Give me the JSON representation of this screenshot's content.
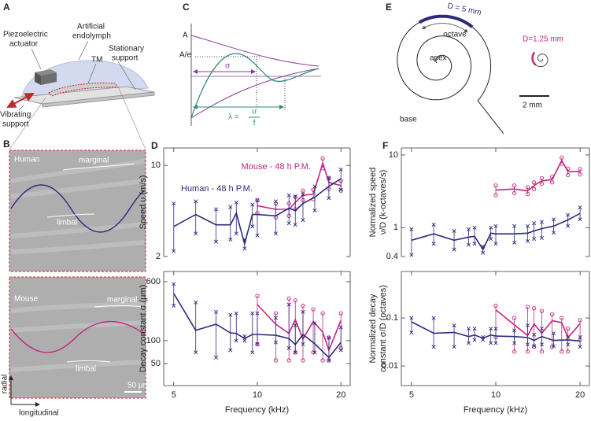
{
  "panel_labels": [
    "A",
    "B",
    "C",
    "D",
    "E",
    "F"
  ],
  "panel_a": {
    "actuator": [
      "Piezoelectric",
      "actuator"
    ],
    "endolymph": [
      "Artificial",
      "endolymph"
    ],
    "tm": "TM",
    "stationary": [
      "Stationary",
      "support"
    ],
    "vibrating": [
      "Vibrating",
      "support"
    ]
  },
  "panel_b": {
    "top": {
      "species": "Human",
      "marginal": "marginal",
      "limbal": "limbal"
    },
    "bottom": {
      "species": "Mouse",
      "marginal": "marginal",
      "limbal": "limbal"
    },
    "radial": "radial",
    "longitudinal": "longitudinal",
    "scale": "50 μm"
  },
  "panel_c": {
    "amp": "A",
    "amp_e": "A/e",
    "sigma": "σ",
    "lambda": "λ =",
    "lambda_num": "υ",
    "lambda_den": "f"
  },
  "panel_e": {
    "d_large": "D = 5 mm",
    "octave": "octave",
    "apex": "apex",
    "base": "base",
    "d_small": "D=1.25 mm",
    "scale": "2 mm"
  },
  "chart_data": [
    {
      "type": "line",
      "ylabel": "Speed υ (m/s)",
      "log_x": true,
      "log_y": true,
      "xlim": [
        4.6,
        21.6
      ],
      "ylim": [
        2,
        13.6
      ],
      "xticks": [
        5,
        10,
        20
      ],
      "yticks": [
        2,
        10
      ],
      "series": [
        {
          "name": "Mouse - 48 h P.M.",
          "color": "#c2267f",
          "marker": "o",
          "x": [
            10,
            11.65,
            13,
            13.7,
            14.6,
            15.9,
            17.2,
            18.1,
            20
          ],
          "values": [
            4.9,
            4.6,
            4.6,
            5.2,
            5.9,
            6.0,
            10.4,
            7.4,
            7.0
          ],
          "low": [
            4.3,
            4.0,
            4.1,
            4.6,
            5.4,
            5.5,
            9.5,
            6.6,
            6.4
          ],
          "high": [
            5.4,
            5.1,
            5.1,
            5.7,
            6.4,
            6.5,
            11.3,
            8.0,
            7.6
          ]
        },
        {
          "name": "Human - 48 h P.M.",
          "color": "#2e2a7c",
          "marker": "x",
          "x": [
            5,
            6,
            7.1,
            8,
            8.4,
            9,
            9.6,
            10,
            11.65,
            13,
            13.7,
            14.6,
            16.1,
            18.1,
            20
          ],
          "values": [
            3.4,
            4.2,
            3.5,
            3.5,
            4.3,
            2.5,
            4.2,
            4.2,
            4.1,
            4.7,
            4.5,
            5.1,
            5.7,
            6.9,
            7.9
          ],
          "low": [
            2.2,
            3.0,
            2.6,
            2.7,
            3.0,
            2.3,
            3.4,
            2.9,
            3.0,
            3.6,
            3.5,
            3.8,
            4.5,
            5.6,
            6.5
          ],
          "high": [
            5.1,
            5.3,
            4.6,
            4.8,
            5.2,
            2.7,
            5.0,
            5.4,
            5.3,
            5.9,
            5.8,
            6.0,
            6.9,
            8.0,
            9.3
          ]
        }
      ]
    },
    {
      "type": "line",
      "ylabel": "Decay constant σ (μm)",
      "xlabel": "Frequency (kHz)",
      "log_x": true,
      "log_y": true,
      "xlim": [
        4.6,
        21.6
      ],
      "ylim": [
        25.6,
        819
      ],
      "xticks": [
        5,
        10,
        20
      ],
      "yticks": [
        50,
        100,
        600
      ],
      "series": [
        {
          "color": "#c2267f",
          "marker": "o",
          "x": [
            10,
            11.65,
            13,
            13.7,
            14.6,
            15.9,
            17.2,
            18.1,
            20
          ],
          "values": [
            300,
            165,
            125,
            190,
            105,
            180,
            130,
            75,
            185
          ],
          "low": [
            90,
            55,
            55,
            70,
            55,
            70,
            55,
            55,
            80
          ],
          "high": [
            390,
            230,
            360,
            340,
            290,
            260,
            230,
            110,
            230
          ]
        },
        {
          "color": "#2e2a7c",
          "marker": "x",
          "x": [
            5,
            6,
            7.1,
            8,
            8.4,
            9,
            9.6,
            10,
            11.65,
            13,
            13.7,
            14.6,
            16.1,
            18.1,
            20
          ],
          "values": [
            420,
            137,
            165,
            127,
            125,
            107,
            121,
            121,
            118,
            107,
            89,
            121,
            91,
            60,
            95
          ],
          "low": [
            290,
            70,
            60,
            75,
            100,
            100,
            70,
            90,
            95,
            80,
            70,
            90,
            70,
            55,
            75
          ],
          "high": [
            560,
            320,
            240,
            220,
            230,
            115,
            230,
            230,
            200,
            300,
            160,
            240,
            170,
            110,
            150
          ]
        }
      ]
    },
    {
      "type": "line",
      "ylabel": [
        "Normalized speed",
        "ν/D (k-octaves/s)"
      ],
      "log_x": true,
      "log_y": true,
      "xlim": [
        4.6,
        21.6
      ],
      "ylim": [
        0.4,
        12.5
      ],
      "xticks": [
        5,
        10,
        20
      ],
      "yticks": [
        0.4,
        1,
        10
      ],
      "series": [
        {
          "color": "#c2267f",
          "marker": "o",
          "x": [
            10,
            11.65,
            13,
            13.7,
            14.6,
            15.9,
            17.2,
            18.1,
            20
          ],
          "values": [
            3.3,
            3.4,
            3.2,
            3.8,
            4.4,
            4.6,
            8.4,
            5.9,
            5.9
          ],
          "low": [
            2.8,
            3.0,
            2.9,
            3.4,
            4.0,
            4.2,
            7.6,
            5.3,
            5.4
          ],
          "high": [
            3.8,
            3.8,
            3.6,
            4.2,
            4.8,
            5.0,
            9.2,
            6.5,
            6.4
          ]
        },
        {
          "color": "#2e2a7c",
          "marker": "x",
          "x": [
            5,
            6,
            7.1,
            8,
            8.4,
            9,
            9.6,
            10,
            11.65,
            13,
            13.7,
            14.6,
            16.1,
            18.1,
            20
          ],
          "values": [
            0.67,
            0.82,
            0.67,
            0.74,
            0.76,
            0.5,
            0.84,
            0.82,
            0.82,
            0.84,
            0.9,
            0.97,
            1.05,
            1.28,
            1.57
          ],
          "low": [
            0.42,
            0.6,
            0.5,
            0.58,
            0.6,
            0.45,
            0.7,
            0.6,
            0.62,
            0.65,
            0.7,
            0.72,
            0.85,
            1.05,
            1.3
          ],
          "high": [
            0.95,
            1.1,
            0.9,
            0.95,
            1.0,
            0.55,
            1.0,
            1.05,
            1.05,
            1.05,
            1.15,
            1.2,
            1.3,
            1.5,
            1.9
          ]
        }
      ]
    },
    {
      "type": "line",
      "ylabel": [
        "Normalized decay",
        "constant σ/D (octaves)"
      ],
      "xlabel": "Frequency (kHz)",
      "log_x": true,
      "log_y": true,
      "xlim": [
        4.6,
        21.6
      ],
      "ylim": [
        0.0039,
        0.93
      ],
      "xticks": [
        5,
        10,
        20
      ],
      "yticks": [
        0.01,
        0.1
      ],
      "series": [
        {
          "color": "#c2267f",
          "marker": "o",
          "x": [
            10,
            11.65,
            13,
            13.7,
            14.6,
            15.9,
            17.2,
            18.1,
            20
          ],
          "values": [
            0.148,
            0.072,
            0.043,
            0.075,
            0.048,
            0.088,
            0.08,
            0.039,
            0.076
          ],
          "low": [
            0.04,
            0.02,
            0.02,
            0.025,
            0.02,
            0.025,
            0.02,
            0.02,
            0.035
          ],
          "high": [
            0.18,
            0.1,
            0.17,
            0.16,
            0.14,
            0.12,
            0.1,
            0.06,
            0.09
          ]
        },
        {
          "color": "#2e2a7c",
          "marker": "x",
          "x": [
            5,
            6,
            7.1,
            8,
            8.4,
            9,
            9.6,
            10,
            11.65,
            13,
            13.7,
            14.6,
            16.1,
            18.1,
            20
          ],
          "values": [
            0.083,
            0.048,
            0.05,
            0.041,
            0.044,
            0.038,
            0.044,
            0.042,
            0.041,
            0.039,
            0.034,
            0.041,
            0.034,
            0.035,
            0.033
          ],
          "low": [
            0.05,
            0.025,
            0.025,
            0.03,
            0.035,
            0.035,
            0.03,
            0.03,
            0.03,
            0.028,
            0.026,
            0.028,
            0.026,
            0.028,
            0.025
          ],
          "high": [
            0.1,
            0.1,
            0.07,
            0.06,
            0.06,
            0.04,
            0.06,
            0.06,
            0.055,
            0.07,
            0.045,
            0.06,
            0.048,
            0.04,
            0.04
          ]
        }
      ]
    }
  ]
}
